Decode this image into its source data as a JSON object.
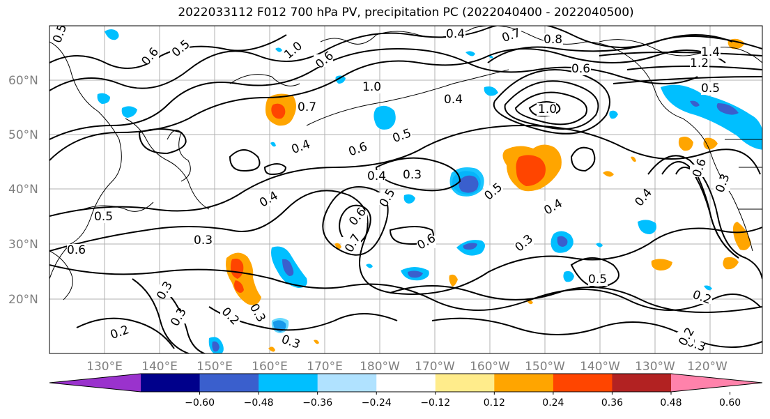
{
  "title": "2022033112 F012 700 hPa PV, precipitation PC (2022040400 - 2022040500)",
  "lat_labels": [
    "60°N",
    "50°N",
    "40°N",
    "30°N",
    "20°N"
  ],
  "lon_labels": [
    "130°E",
    "140°E",
    "150°E",
    "160°E",
    "170°E",
    "180°W",
    "170°W",
    "160°W",
    "150°W",
    "140°W",
    "130°W",
    "120°W"
  ],
  "colorbar": {
    "ticks": [
      "−0.60",
      "−0.48",
      "−0.36",
      "−0.24",
      "−0.12",
      "0.12",
      "0.24",
      "0.36",
      "0.48",
      "0.60"
    ],
    "colors": [
      "#9a32cd",
      "#00008b",
      "#3a5fcd",
      "#00bfff",
      "#b0e2ff",
      "#ffffff",
      "#ffec8b",
      "#ffa500",
      "#ff4500",
      "#b22222",
      "#ff82ab"
    ]
  },
  "contour_labels": [
    {
      "text": "0.5",
      "cls": "c1"
    },
    {
      "text": "0.6",
      "cls": "c2"
    },
    {
      "text": "0.5",
      "cls": "c3"
    },
    {
      "text": "1.0",
      "cls": "c4"
    },
    {
      "text": "0.6",
      "cls": "c5"
    },
    {
      "text": "0.4",
      "cls": "c6"
    },
    {
      "text": "0.7",
      "cls": "c7"
    },
    {
      "text": "0.8",
      "cls": "c8"
    },
    {
      "text": "1.4",
      "cls": "c9"
    },
    {
      "text": "1.2",
      "cls": "c10"
    },
    {
      "text": "0.6",
      "cls": "c11"
    },
    {
      "text": "1.0",
      "cls": "c12"
    },
    {
      "text": "0.4",
      "cls": "c13"
    },
    {
      "text": "1.0",
      "cls": "c14"
    },
    {
      "text": "0.5",
      "cls": "c15"
    },
    {
      "text": "0.7",
      "cls": "c16"
    },
    {
      "text": "0.4",
      "cls": "c17"
    },
    {
      "text": "0.6",
      "cls": "c18"
    },
    {
      "text": "0.5",
      "cls": "c19"
    },
    {
      "text": "0.4",
      "cls": "c20"
    },
    {
      "text": "0.3",
      "cls": "c21"
    },
    {
      "text": "0.5",
      "cls": "c22"
    },
    {
      "text": "0.4",
      "cls": "c23"
    },
    {
      "text": "0.6",
      "cls": "c24"
    },
    {
      "text": "0.5",
      "cls": "c25"
    },
    {
      "text": "0.6",
      "cls": "c26"
    },
    {
      "text": "0.3",
      "cls": "c27"
    },
    {
      "text": "0.4",
      "cls": "c28"
    },
    {
      "text": "0.3",
      "cls": "c29"
    },
    {
      "text": "0.5",
      "cls": "c30"
    },
    {
      "text": "0.5",
      "cls": "c31"
    },
    {
      "text": "0.6",
      "cls": "c32"
    },
    {
      "text": "0.3",
      "cls": "c33"
    },
    {
      "text": "0.3",
      "cls": "c34"
    },
    {
      "text": "0.2",
      "cls": "c35"
    },
    {
      "text": "0.3",
      "cls": "c36"
    },
    {
      "text": "0.2",
      "cls": "c37"
    },
    {
      "text": "0.3",
      "cls": "c38"
    },
    {
      "text": "0.2",
      "cls": "c39"
    },
    {
      "text": "0.3",
      "cls": "c40"
    },
    {
      "text": "0.6",
      "cls": "c41"
    },
    {
      "text": "0.4",
      "cls": "c42"
    },
    {
      "text": "0.2",
      "cls": "c43"
    },
    {
      "text": "0.3",
      "cls": "c44"
    },
    {
      "text": "0.7",
      "cls": "c45"
    }
  ]
}
